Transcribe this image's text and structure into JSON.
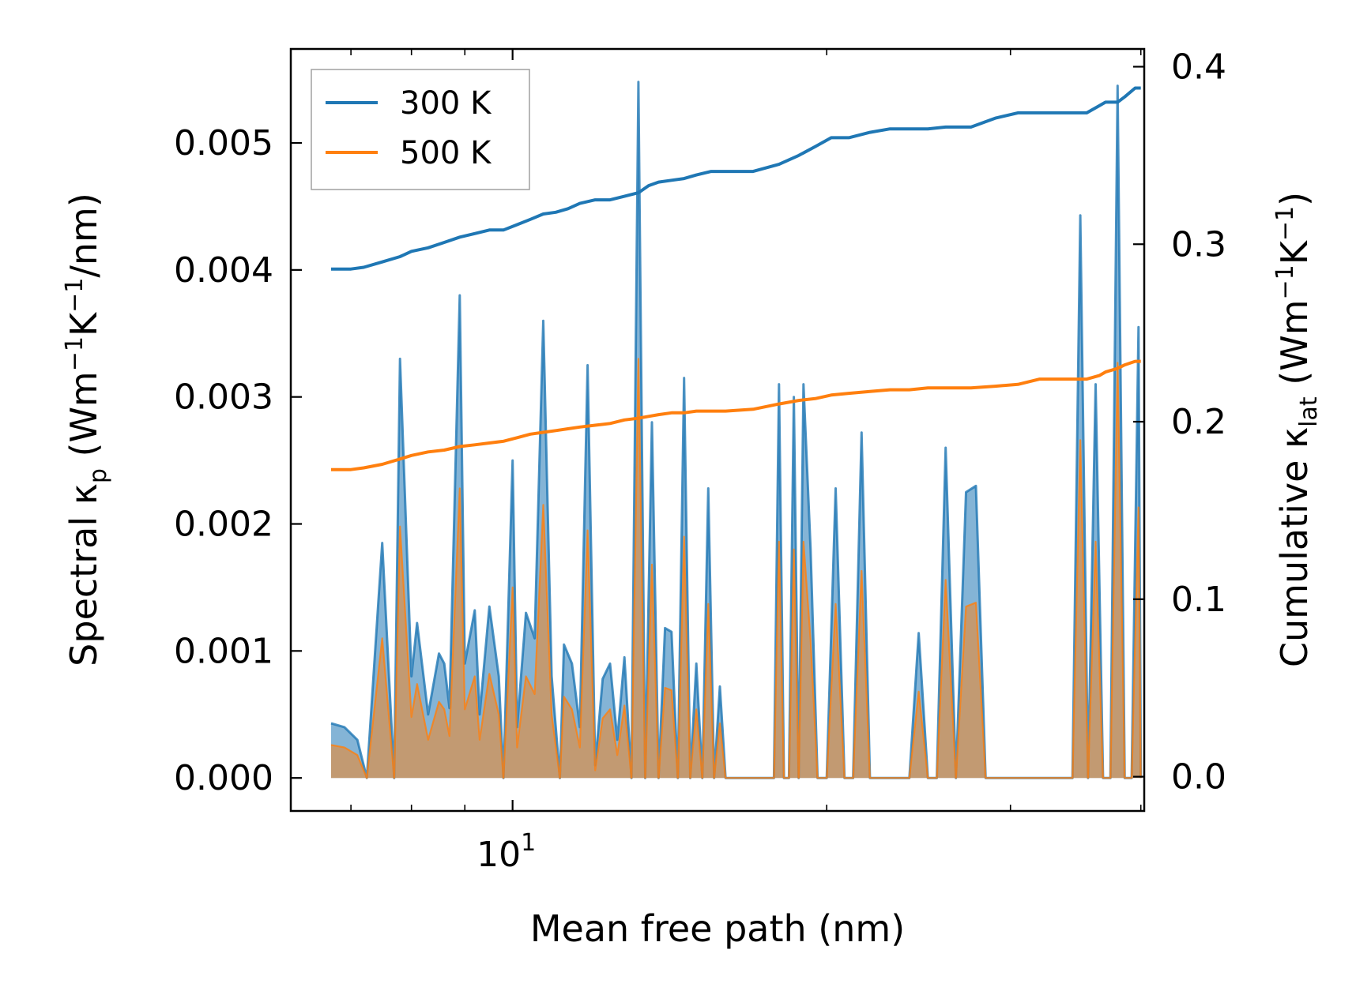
{
  "chart_data": {
    "type": "line",
    "xlabel": "Mean free path (nm)",
    "ylabel_left": {
      "main": "Spectral κ",
      "sub": "p",
      "unit_pre": " (Wm",
      "sup1": "−1",
      "mid": "K",
      "sup2": "−1",
      "unit_post": "/nm)"
    },
    "ylabel_right": {
      "main": "Cumulative κ",
      "sub": "lat",
      "unit_pre": " (Wm",
      "sup1": "−1",
      "mid": "K",
      "sup2": "−1",
      "unit_post": ")"
    },
    "x_scale": "log",
    "xlim": [
      6.13,
      40.3
    ],
    "ylim_left": [
      -0.00026,
      0.00574
    ],
    "ylim_right": [
      -0.0193,
      0.41
    ],
    "x_tick_labels": [
      {
        "value": 10,
        "base": "10",
        "exp": "1"
      }
    ],
    "y_left_ticks": [
      "0.000",
      "0.001",
      "0.002",
      "0.003",
      "0.004",
      "0.005"
    ],
    "y_left_tick_values": [
      0,
      0.001,
      0.002,
      0.003,
      0.004,
      0.005
    ],
    "y_right_ticks": [
      "0.0",
      "0.1",
      "0.2",
      "0.3",
      "0.4"
    ],
    "y_right_tick_values": [
      0,
      0.1,
      0.2,
      0.3,
      0.4
    ],
    "legend": {
      "position": "top-left",
      "entries": [
        "300 K",
        "500 K"
      ]
    },
    "colors": {
      "300 K": "#1f77b4",
      "500 K": "#ff7f0e"
    },
    "spectral_series": [
      {
        "name": "300 K",
        "x": [
          6.7,
          6.9,
          7.1,
          7.25,
          7.5,
          7.7,
          7.8,
          8.0,
          8.1,
          8.3,
          8.5,
          8.6,
          8.7,
          8.9,
          9.0,
          9.2,
          9.3,
          9.5,
          9.7,
          9.8,
          10.0,
          10.1,
          10.3,
          10.5,
          10.7,
          10.9,
          11.1,
          11.2,
          11.4,
          11.6,
          11.8,
          12.0,
          12.2,
          12.4,
          12.6,
          12.8,
          13.0,
          13.2,
          13.4,
          13.6,
          13.8,
          14.0,
          14.2,
          14.4,
          14.6,
          14.8,
          15.0,
          15.2,
          15.4,
          15.6,
          15.8,
          16.0,
          16.2,
          16.4,
          16.6,
          16.8,
          17.0,
          17.2,
          17.4,
          17.6,
          17.8,
          18.0,
          18.2,
          18.4,
          18.6,
          18.8,
          19.0,
          19.3,
          19.6,
          20.0,
          20.4,
          20.8,
          21.2,
          21.6,
          22.0,
          22.4,
          22.8,
          23.2,
          23.6,
          24.0,
          24.5,
          25.0,
          25.5,
          26.0,
          26.6,
          27.2,
          27.8,
          28.4,
          29.0,
          29.6,
          30.2,
          30.8,
          31.4,
          32.0,
          32.6,
          33.2,
          33.8,
          34.4,
          35.0,
          35.6,
          36.2,
          36.8,
          37.4,
          38.0,
          38.6,
          39.2,
          39.8,
          40.0
        ],
        "values": [
          0.00043,
          0.0004,
          0.0003,
          0.0,
          0.00185,
          0.0,
          0.0033,
          0.0008,
          0.00122,
          0.0005,
          0.00098,
          0.0009,
          0.00055,
          0.0038,
          0.0009,
          0.00132,
          0.0005,
          0.00135,
          0.0008,
          0.0,
          0.0025,
          0.0004,
          0.0013,
          0.0011,
          0.0036,
          0.0008,
          0.0,
          0.00105,
          0.0009,
          0.0004,
          0.00325,
          0.0001,
          0.00078,
          0.0009,
          0.0003,
          0.00095,
          0.0,
          0.00548,
          0.0,
          0.0028,
          0.0,
          0.00118,
          0.00115,
          0.0,
          0.00315,
          0.0,
          0.0009,
          0.0,
          0.00228,
          0.0,
          0.00072,
          0.0,
          0.0,
          0.0,
          0.0,
          0.0,
          0.0,
          0.0,
          0.0,
          0.0,
          0.0,
          0.0031,
          0.0,
          0.0,
          0.003,
          0.0,
          0.0031,
          0.0018,
          0.0,
          0.0,
          0.00228,
          0.0,
          0.0,
          0.00272,
          0.0,
          0.0,
          0.0,
          0.0,
          0.0,
          0.0,
          0.00114,
          0.0,
          0.0,
          0.0026,
          0.0,
          0.00225,
          0.0023,
          0.0,
          0.0,
          0.0,
          0.0,
          0.0,
          0.0,
          0.0,
          0.0,
          0.0,
          0.0,
          0.0,
          0.00443,
          0.0,
          0.0031,
          0.0,
          0.0,
          0.00545,
          0.0,
          0.0,
          0.00355,
          0.0
        ]
      },
      {
        "name": "500 K",
        "x": [
          6.7,
          6.9,
          7.1,
          7.25,
          7.5,
          7.7,
          7.8,
          8.0,
          8.1,
          8.3,
          8.5,
          8.6,
          8.7,
          8.9,
          9.0,
          9.2,
          9.3,
          9.5,
          9.7,
          9.8,
          10.0,
          10.1,
          10.3,
          10.5,
          10.7,
          10.9,
          11.1,
          11.2,
          11.4,
          11.6,
          11.8,
          12.0,
          12.2,
          12.4,
          12.6,
          12.8,
          13.0,
          13.2,
          13.4,
          13.6,
          13.8,
          14.0,
          14.2,
          14.4,
          14.6,
          14.8,
          15.0,
          15.2,
          15.4,
          15.6,
          15.8,
          16.0,
          16.2,
          16.4,
          16.6,
          16.8,
          17.0,
          17.2,
          17.4,
          17.6,
          17.8,
          18.0,
          18.2,
          18.4,
          18.6,
          18.8,
          19.0,
          19.3,
          19.6,
          20.0,
          20.4,
          20.8,
          21.2,
          21.6,
          22.0,
          22.4,
          22.8,
          23.2,
          23.6,
          24.0,
          24.5,
          25.0,
          25.5,
          26.0,
          26.6,
          27.2,
          27.8,
          28.4,
          29.0,
          29.6,
          30.2,
          30.8,
          31.4,
          32.0,
          32.6,
          33.2,
          33.8,
          34.4,
          35.0,
          35.6,
          36.2,
          36.8,
          37.4,
          38.0,
          38.6,
          39.2,
          39.8,
          40.0
        ],
        "values": [
          0.00026,
          0.00024,
          0.00018,
          0.0,
          0.0011,
          0.0,
          0.00198,
          0.00048,
          0.00074,
          0.0003,
          0.0006,
          0.00054,
          0.00033,
          0.00228,
          0.00054,
          0.0008,
          0.0003,
          0.00082,
          0.0005,
          0.0,
          0.0015,
          0.00024,
          0.0008,
          0.00066,
          0.00215,
          0.0005,
          0.0,
          0.00064,
          0.00054,
          0.00024,
          0.00195,
          6e-05,
          0.00047,
          0.00054,
          0.00018,
          0.00057,
          0.0,
          0.0033,
          0.0,
          0.00168,
          0.0,
          0.00071,
          0.00069,
          0.0,
          0.0019,
          0.0,
          0.00054,
          0.0,
          0.00137,
          0.0,
          0.00043,
          0.0,
          0.0,
          0.0,
          0.0,
          0.0,
          0.0,
          0.0,
          0.0,
          0.0,
          0.0,
          0.00186,
          0.0,
          0.0,
          0.0018,
          0.0,
          0.00186,
          0.00108,
          0.0,
          0.0,
          0.00137,
          0.0,
          0.0,
          0.00163,
          0.0,
          0.0,
          0.0,
          0.0,
          0.0,
          0.0,
          0.00068,
          0.0,
          0.0,
          0.00156,
          0.0,
          0.00135,
          0.00138,
          0.0,
          0.0,
          0.0,
          0.0,
          0.0,
          0.0,
          0.0,
          0.0,
          0.0,
          0.0,
          0.0,
          0.00266,
          0.0,
          0.00186,
          0.0,
          0.0,
          0.00327,
          0.0,
          0.0,
          0.00213,
          0.0
        ]
      }
    ],
    "cumulative_series": [
      {
        "name": "300 K",
        "x": [
          6.7,
          7.0,
          7.2,
          7.5,
          7.8,
          8.0,
          8.3,
          8.6,
          8.9,
          9.2,
          9.5,
          9.8,
          10.1,
          10.4,
          10.7,
          11.0,
          11.3,
          11.6,
          12.0,
          12.4,
          12.8,
          13.2,
          13.5,
          13.8,
          14.2,
          14.6,
          15.0,
          15.5,
          16.0,
          17.0,
          18.0,
          18.8,
          19.5,
          20.2,
          21.0,
          22.0,
          23.0,
          24.0,
          25.0,
          26.0,
          27.5,
          29.0,
          30.5,
          32.0,
          34.0,
          35.5,
          36.5,
          37.0,
          38.0,
          38.6,
          39.5,
          40.0
        ],
        "values": [
          0.286,
          0.286,
          0.287,
          0.29,
          0.293,
          0.296,
          0.298,
          0.301,
          0.304,
          0.306,
          0.308,
          0.308,
          0.311,
          0.314,
          0.317,
          0.318,
          0.32,
          0.323,
          0.325,
          0.325,
          0.327,
          0.329,
          0.333,
          0.335,
          0.336,
          0.337,
          0.339,
          0.341,
          0.341,
          0.341,
          0.345,
          0.35,
          0.355,
          0.36,
          0.36,
          0.363,
          0.365,
          0.365,
          0.365,
          0.366,
          0.366,
          0.371,
          0.374,
          0.374,
          0.374,
          0.374,
          0.378,
          0.38,
          0.38,
          0.383,
          0.388,
          0.388
        ]
      },
      {
        "name": "500 K",
        "x": [
          6.7,
          7.0,
          7.2,
          7.5,
          7.8,
          8.0,
          8.3,
          8.6,
          8.9,
          9.2,
          9.5,
          9.8,
          10.1,
          10.4,
          10.7,
          11.0,
          11.3,
          11.6,
          12.0,
          12.4,
          12.8,
          13.2,
          13.5,
          13.8,
          14.2,
          14.6,
          15.0,
          15.5,
          16.0,
          17.0,
          18.0,
          18.8,
          19.5,
          20.2,
          21.0,
          22.0,
          23.0,
          24.0,
          25.0,
          26.0,
          27.5,
          29.0,
          30.5,
          32.0,
          34.0,
          35.5,
          36.5,
          37.0,
          38.0,
          38.6,
          39.5,
          40.0
        ],
        "values": [
          0.173,
          0.173,
          0.174,
          0.176,
          0.179,
          0.181,
          0.183,
          0.184,
          0.186,
          0.187,
          0.188,
          0.189,
          0.191,
          0.193,
          0.194,
          0.195,
          0.196,
          0.197,
          0.198,
          0.199,
          0.201,
          0.202,
          0.203,
          0.204,
          0.205,
          0.205,
          0.206,
          0.206,
          0.206,
          0.207,
          0.21,
          0.212,
          0.213,
          0.215,
          0.216,
          0.217,
          0.218,
          0.218,
          0.219,
          0.219,
          0.219,
          0.22,
          0.221,
          0.224,
          0.224,
          0.224,
          0.226,
          0.228,
          0.23,
          0.232,
          0.234,
          0.234
        ]
      }
    ]
  }
}
